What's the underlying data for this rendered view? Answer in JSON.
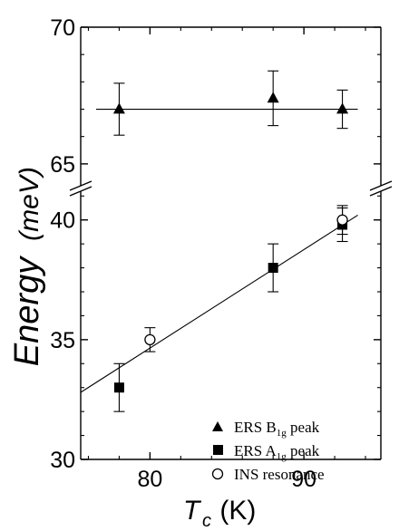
{
  "chart_data": {
    "type": "scatter",
    "x_axis": {
      "label_var": "T",
      "label_sub": "c",
      "label_unit": " (K)",
      "range": [
        75.5,
        95
      ],
      "ticks": [
        80,
        90
      ],
      "tick_labels": [
        "80",
        "90"
      ]
    },
    "y_axis": {
      "label_main": "Energy",
      "label_unit": "(meV)",
      "break": true,
      "upper_range": [
        64.2,
        70
      ],
      "upper_ticks": [
        65,
        70
      ],
      "upper_tick_labels": [
        "65",
        "70"
      ],
      "lower_range": [
        30,
        41.2
      ],
      "lower_ticks": [
        30,
        35,
        40
      ],
      "lower_tick_labels": [
        "30",
        "35",
        "40"
      ]
    },
    "series": [
      {
        "name_main": "ERS B",
        "name_sub": "1g",
        "name_tail": " peak",
        "marker": "triangle",
        "panel": "upper",
        "points": [
          {
            "x": 78,
            "y": 67.0,
            "err": 0.95
          },
          {
            "x": 88,
            "y": 67.4,
            "err": 1.0
          },
          {
            "x": 92.5,
            "y": 67.0,
            "err": 0.7
          }
        ]
      },
      {
        "name_main": "ERS A",
        "name_sub": "1g",
        "name_tail": " peak",
        "marker": "square",
        "panel": "lower",
        "points": [
          {
            "x": 78,
            "y": 33.0,
            "err": 1.0
          },
          {
            "x": 88,
            "y": 38.0,
            "err": 1.0
          },
          {
            "x": 92.5,
            "y": 39.8,
            "err": 0.7
          }
        ]
      },
      {
        "name_main": "INS resonance",
        "name_sub": "",
        "name_tail": "",
        "marker": "circle",
        "panel": "lower",
        "points": [
          {
            "x": 80,
            "y": 35.0,
            "err": 0.5
          },
          {
            "x": 92.5,
            "y": 40.0,
            "err": 0.6
          }
        ]
      }
    ],
    "fit_lines": [
      {
        "panel": "upper",
        "x": [
          76.5,
          93.5
        ],
        "y": [
          67.0,
          67.0
        ]
      },
      {
        "panel": "lower",
        "x": [
          75.5,
          93.5
        ],
        "y": [
          32.8,
          40.2
        ]
      }
    ],
    "legend_position": "bottom-right",
    "colors": {
      "ink": "#000000",
      "background": "#ffffff"
    }
  }
}
